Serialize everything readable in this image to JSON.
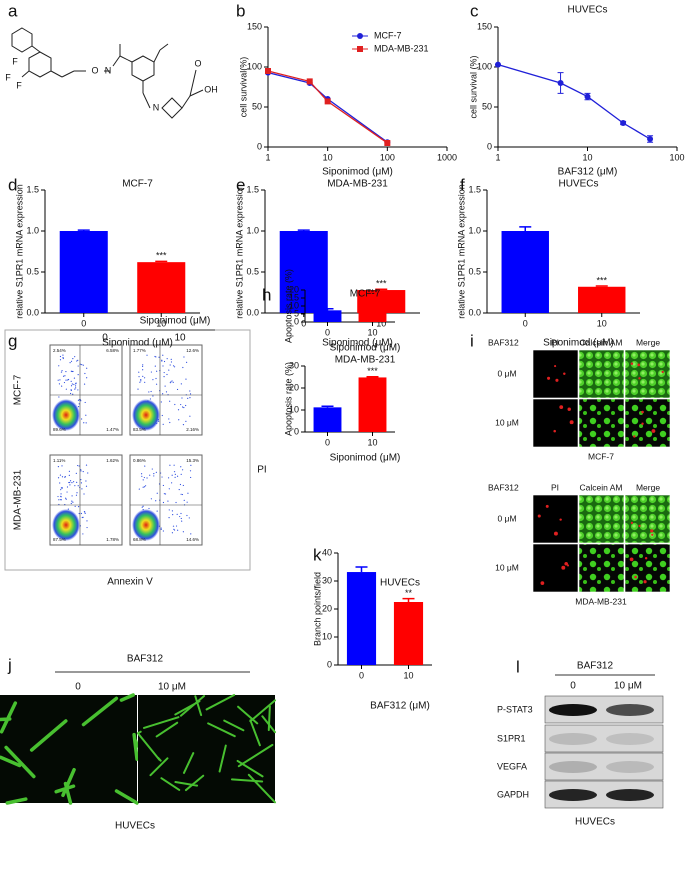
{
  "chart_data": [
    {
      "type": "line",
      "panel": "b",
      "x_label": "Siponimod (μM)",
      "y_label": "cell survival(%)",
      "x": [
        1,
        5,
        10,
        100
      ],
      "series": [
        {
          "name": "MCF-7",
          "color": "#2020d8",
          "values": [
            93,
            80,
            60,
            6
          ]
        },
        {
          "name": "MDA-MB-231",
          "color": "#e02020",
          "values": [
            95,
            82,
            57,
            5
          ]
        }
      ],
      "xlim": [
        1,
        1000
      ],
      "xticks": [
        1,
        10,
        100,
        1000
      ],
      "xscale": "log",
      "ylim": [
        0,
        150
      ],
      "yticks": [
        0,
        50,
        100,
        150
      ],
      "legend": "upper right"
    },
    {
      "type": "line",
      "panel": "c",
      "title": "HUVECs",
      "x_label": "BAF312 (μM)",
      "y_label": "cell survival (%)",
      "x": [
        1,
        5,
        10,
        25,
        50
      ],
      "series": [
        {
          "color": "#2020d8",
          "values": [
            103,
            80,
            63,
            30,
            10
          ],
          "errors": [
            0,
            13,
            4,
            2,
            4
          ]
        }
      ],
      "xlim": [
        1,
        100
      ],
      "xticks": [
        1,
        10,
        100
      ],
      "xscale": "log",
      "ylim": [
        0,
        150
      ],
      "yticks": [
        0,
        50,
        100,
        150
      ]
    },
    {
      "type": "bar",
      "panel": "d",
      "title": "MCF-7",
      "x_label": "Siponimod (μM)",
      "y_label": "relative S1PR1 mRNA expression",
      "categories": [
        "0",
        "10"
      ],
      "values": [
        1.0,
        0.62
      ],
      "errors": [
        0.01,
        0.01
      ],
      "colors": [
        "#0000ff",
        "#ff0000"
      ],
      "significance": "***",
      "ylim": [
        0,
        1.5
      ],
      "yticks": [
        {
          "value": 0,
          "label": "0.0"
        },
        0.5,
        {
          "value": 1,
          "label": "1.0"
        },
        1.5
      ]
    },
    {
      "type": "bar",
      "panel": "e",
      "title": "MDA-MB-231",
      "x_label": "Siponimod (μM)",
      "y_label": "relative S1PR1 mRNA expression",
      "categories": [
        "0",
        "10"
      ],
      "values": [
        1.0,
        0.28
      ],
      "errors": [
        0.01,
        0.01
      ],
      "colors": [
        "#0000ff",
        "#ff0000"
      ],
      "significance": "***",
      "ylim": [
        0,
        1.5
      ],
      "yticks": [
        {
          "value": 0,
          "label": "0.0"
        },
        0.5,
        {
          "value": 1,
          "label": "1.0"
        },
        1.5
      ]
    },
    {
      "type": "bar",
      "panel": "f",
      "title": "HUVECs",
      "x_label": "Siponimod (μM)",
      "y_label": "relative S1PR1 mRNA expression",
      "categories": [
        "0",
        "10"
      ],
      "values": [
        1.0,
        0.32
      ],
      "errors": [
        0.05,
        0.01
      ],
      "colors": [
        "#0000ff",
        "#ff0000"
      ],
      "significance": "***",
      "ylim": [
        0,
        1.5
      ],
      "yticks": [
        {
          "value": 0,
          "label": "0.0"
        },
        0.5,
        {
          "value": 1,
          "label": "1.0"
        },
        1.5
      ]
    },
    {
      "type": "bar",
      "panel": "h",
      "title": "MCF-7",
      "x_label": "Siponimod (μM)",
      "y_label": "Apoptosis rate (%)",
      "categories": [
        "0",
        "10"
      ],
      "values": [
        7.3,
        14.8
      ],
      "errors": [
        1,
        0.2
      ],
      "colors": [
        "#0000ff",
        "#ff0000"
      ],
      "significance": "***",
      "ylim": [
        0,
        20
      ],
      "yticks": [
        0,
        5,
        10,
        15,
        20
      ]
    },
    {
      "type": "bar",
      "title": "MDA-MB-231",
      "x_label": "Siponimod (μM)",
      "y_label": "Apoptosis rate (%)",
      "categories": [
        "0",
        "10"
      ],
      "values": [
        11.2,
        24.8
      ],
      "errors": [
        0.5,
        0.3
      ],
      "colors": [
        "#0000ff",
        "#ff0000"
      ],
      "significance": "***",
      "ylim": [
        0,
        30
      ],
      "yticks": [
        0,
        10,
        20,
        30
      ]
    },
    {
      "type": "bar",
      "panel": "k",
      "title": "HUVECs",
      "x_label": "BAF312 (μM)",
      "y_label": "Branch points/field",
      "categories": [
        "0",
        "10"
      ],
      "values": [
        33.2,
        22.5
      ],
      "errors": [
        1.8,
        1.2
      ],
      "colors": [
        "#0000ff",
        "#ff0000"
      ],
      "significance": "**",
      "ylim": [
        0,
        40
      ],
      "yticks": [
        0,
        10,
        20,
        30,
        40
      ]
    }
  ],
  "figure": {
    "a": {
      "label": "a",
      "atoms": [
        "F",
        "F",
        "F",
        "O",
        "N",
        "N",
        "OH",
        "O"
      ]
    },
    "g": {
      "label": "g",
      "treatment": "Siponimod (μM)",
      "columns": [
        "0",
        "10"
      ],
      "rows": [
        "MCF-7",
        "MDA-MB-231"
      ],
      "x_label": "Annexin V",
      "y_label": "PI",
      "quadrants": [
        [
          "2.54%",
          "6.58%",
          "89.6%",
          "1.47%"
        ],
        [
          "1.77%",
          "12.6%",
          "83.5%",
          "2.16%"
        ],
        [
          "1.11%",
          "1.62%",
          "87.5%",
          "1.78%"
        ],
        [
          "0.86%",
          "15.3%",
          "68.8%",
          "14.6%"
        ]
      ]
    },
    "i": {
      "label": "i",
      "blocks": [
        {
          "treatment": "BAF312",
          "columns": [
            "PI",
            "Calcein AM",
            "Merge"
          ],
          "rows": [
            "0 μM",
            "10 μM"
          ],
          "caption": "MCF-7"
        },
        {
          "treatment": "BAF312",
          "columns": [
            "PI",
            "Calcein AM",
            "Merge"
          ],
          "rows": [
            "0 μM",
            "10 μM"
          ],
          "caption": "MDA-MB-231"
        }
      ]
    },
    "j": {
      "label": "j",
      "treatment": "BAF312",
      "columns": [
        "0",
        "10 μM"
      ],
      "caption": "HUVECs"
    },
    "l": {
      "label": "l",
      "treatment": "BAF312",
      "columns": [
        "0",
        "10 μM"
      ],
      "rows": [
        "P-STAT3",
        "S1PR1",
        "VEGFA",
        "GAPDH"
      ],
      "caption": "HUVECs"
    }
  }
}
